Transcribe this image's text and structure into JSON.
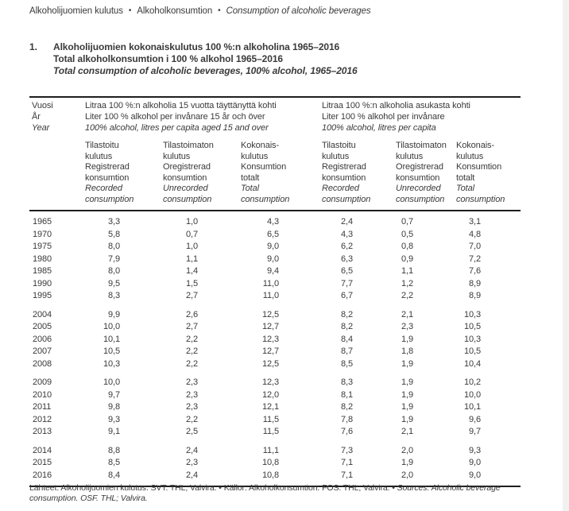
{
  "breadcrumb": {
    "fi": "Alkoholijuomien kulutus",
    "sv": "Alkoholkonsumtion",
    "en": "Consumption of alcoholic beverages",
    "separator": "•"
  },
  "title": {
    "number": "1.",
    "fi": "Alkoholijuomien kokonaiskulutus 100 %:n alkoholina 1965–2016",
    "sv": "Total alkoholkonsumtion i 100 % alkohol 1965–2016",
    "en": "Total consumption of alcoholic beverages, 100% alcohol, 1965–2016"
  },
  "table": {
    "year_header": {
      "fi": "Vuosi",
      "sv": "År",
      "en": "Year"
    },
    "groups": [
      {
        "fi": "Litraa 100 %:n alkoholia 15 vuotta täyttänyttä kohti",
        "sv": "Liter 100 % alkohol per invånare 15 år och över",
        "en": "100% alcohol, litres per capita aged 15 and over"
      },
      {
        "fi": "Litraa 100 %:n alkoholia asukasta kohti",
        "sv": "Liter 100 % alkohol per invånare",
        "en": "100% alcohol, litres per capita"
      }
    ],
    "columns": [
      {
        "fi": [
          "Tilastoitu",
          "kulutus"
        ],
        "sv": [
          "Registrerad",
          "konsumtion"
        ],
        "en": [
          "Recorded",
          "consumption"
        ]
      },
      {
        "fi": [
          "Tilastoimaton",
          "kulutus"
        ],
        "sv": [
          "Oregistrerad",
          "konsumtion"
        ],
        "en": [
          "Unrecorded",
          "consumption"
        ]
      },
      {
        "fi": [
          "Kokonais-",
          "kulutus"
        ],
        "sv": [
          "Konsumtion",
          "totalt"
        ],
        "en": [
          "Total",
          "consumption"
        ]
      },
      {
        "fi": [
          "Tilastoitu",
          "kulutus"
        ],
        "sv": [
          "Registrerad",
          "konsumtion"
        ],
        "en": [
          "Recorded",
          "consumption"
        ]
      },
      {
        "fi": [
          "Tilastoimaton",
          "kulutus"
        ],
        "sv": [
          "Oregistrerad",
          "konsumtion"
        ],
        "en": [
          "Unrecorded",
          "consumption"
        ]
      },
      {
        "fi": [
          "Kokonais-",
          "kulutus"
        ],
        "sv": [
          "Konsumtion",
          "totalt"
        ],
        "en": [
          "Total",
          "consumption"
        ]
      }
    ],
    "row_groups": [
      {
        "rows": [
          {
            "year": "1965",
            "values": [
              "3,3",
              "1,0",
              "4,3",
              "2,4",
              "0,7",
              "3,1"
            ]
          },
          {
            "year": "1970",
            "values": [
              "5,8",
              "0,7",
              "6,5",
              "4,3",
              "0,5",
              "4,8"
            ]
          },
          {
            "year": "1975",
            "values": [
              "8,0",
              "1,0",
              "9,0",
              "6,2",
              "0,8",
              "7,0"
            ]
          },
          {
            "year": "1980",
            "values": [
              "7,9",
              "1,1",
              "9,0",
              "6,3",
              "0,9",
              "7,2"
            ]
          },
          {
            "year": "1985",
            "values": [
              "8,0",
              "1,4",
              "9,4",
              "6,5",
              "1,1",
              "7,6"
            ]
          },
          {
            "year": "1990",
            "values": [
              "9,5",
              "1,5",
              "11,0",
              "7,7",
              "1,2",
              "8,9"
            ]
          },
          {
            "year": "1995",
            "values": [
              "8,3",
              "2,7",
              "11,0",
              "6,7",
              "2,2",
              "8,9"
            ]
          }
        ]
      },
      {
        "rows": [
          {
            "year": "2004",
            "values": [
              "9,9",
              "2,6",
              "12,5",
              "8,2",
              "2,1",
              "10,3"
            ]
          },
          {
            "year": "2005",
            "values": [
              "10,0",
              "2,7",
              "12,7",
              "8,2",
              "2,3",
              "10,5"
            ]
          },
          {
            "year": "2006",
            "values": [
              "10,1",
              "2,2",
              "12,3",
              "8,4",
              "1,9",
              "10,3"
            ]
          },
          {
            "year": "2007",
            "values": [
              "10,5",
              "2,2",
              "12,7",
              "8,7",
              "1,8",
              "10,5"
            ]
          },
          {
            "year": "2008",
            "values": [
              "10,3",
              "2,2",
              "12,5",
              "8,5",
              "1,9",
              "10,4"
            ]
          }
        ]
      },
      {
        "rows": [
          {
            "year": "2009",
            "values": [
              "10,0",
              "2,3",
              "12,3",
              "8,3",
              "1,9",
              "10,2"
            ]
          },
          {
            "year": "2010",
            "values": [
              "9,7",
              "2,3",
              "12,0",
              "8,1",
              "1,9",
              "10,0"
            ]
          },
          {
            "year": "2011",
            "values": [
              "9,8",
              "2,3",
              "12,1",
              "8,2",
              "1,9",
              "10,1"
            ]
          },
          {
            "year": "2012",
            "values": [
              "9,3",
              "2,2",
              "11,5",
              "7,8",
              "1,9",
              "9,6"
            ]
          },
          {
            "year": "2013",
            "values": [
              "9,1",
              "2,5",
              "11,5",
              "7,6",
              "2,1",
              "9,7"
            ]
          }
        ]
      },
      {
        "rows": [
          {
            "year": "2014",
            "values": [
              "8,8",
              "2,4",
              "11,1",
              "7,3",
              "2,0",
              "9,3"
            ]
          },
          {
            "year": "2015",
            "values": [
              "8,5",
              "2,3",
              "10,8",
              "7,1",
              "1,9",
              "9,0"
            ]
          },
          {
            "year": "2016",
            "values": [
              "8,4",
              "2,4",
              "10,8",
              "7,1",
              "2,0",
              "9,0"
            ]
          }
        ]
      }
    ]
  },
  "footer": {
    "line1_regular": "Lähteet: Alkoholijuomien kulutus. SVT. THL; Valvira.",
    "separator": "•",
    "line1_regular2": "Källor: Alkoholkonsumtion. FOS. THL; Valvira.",
    "line1_italic": "Sources: Alcoholic beverage",
    "line2_italic": "consumption. OSF. THL; Valvira."
  },
  "colors": {
    "text": "#3a3a3a",
    "rule": "#1e1e1e",
    "page_edge": "#f1f1f1"
  }
}
